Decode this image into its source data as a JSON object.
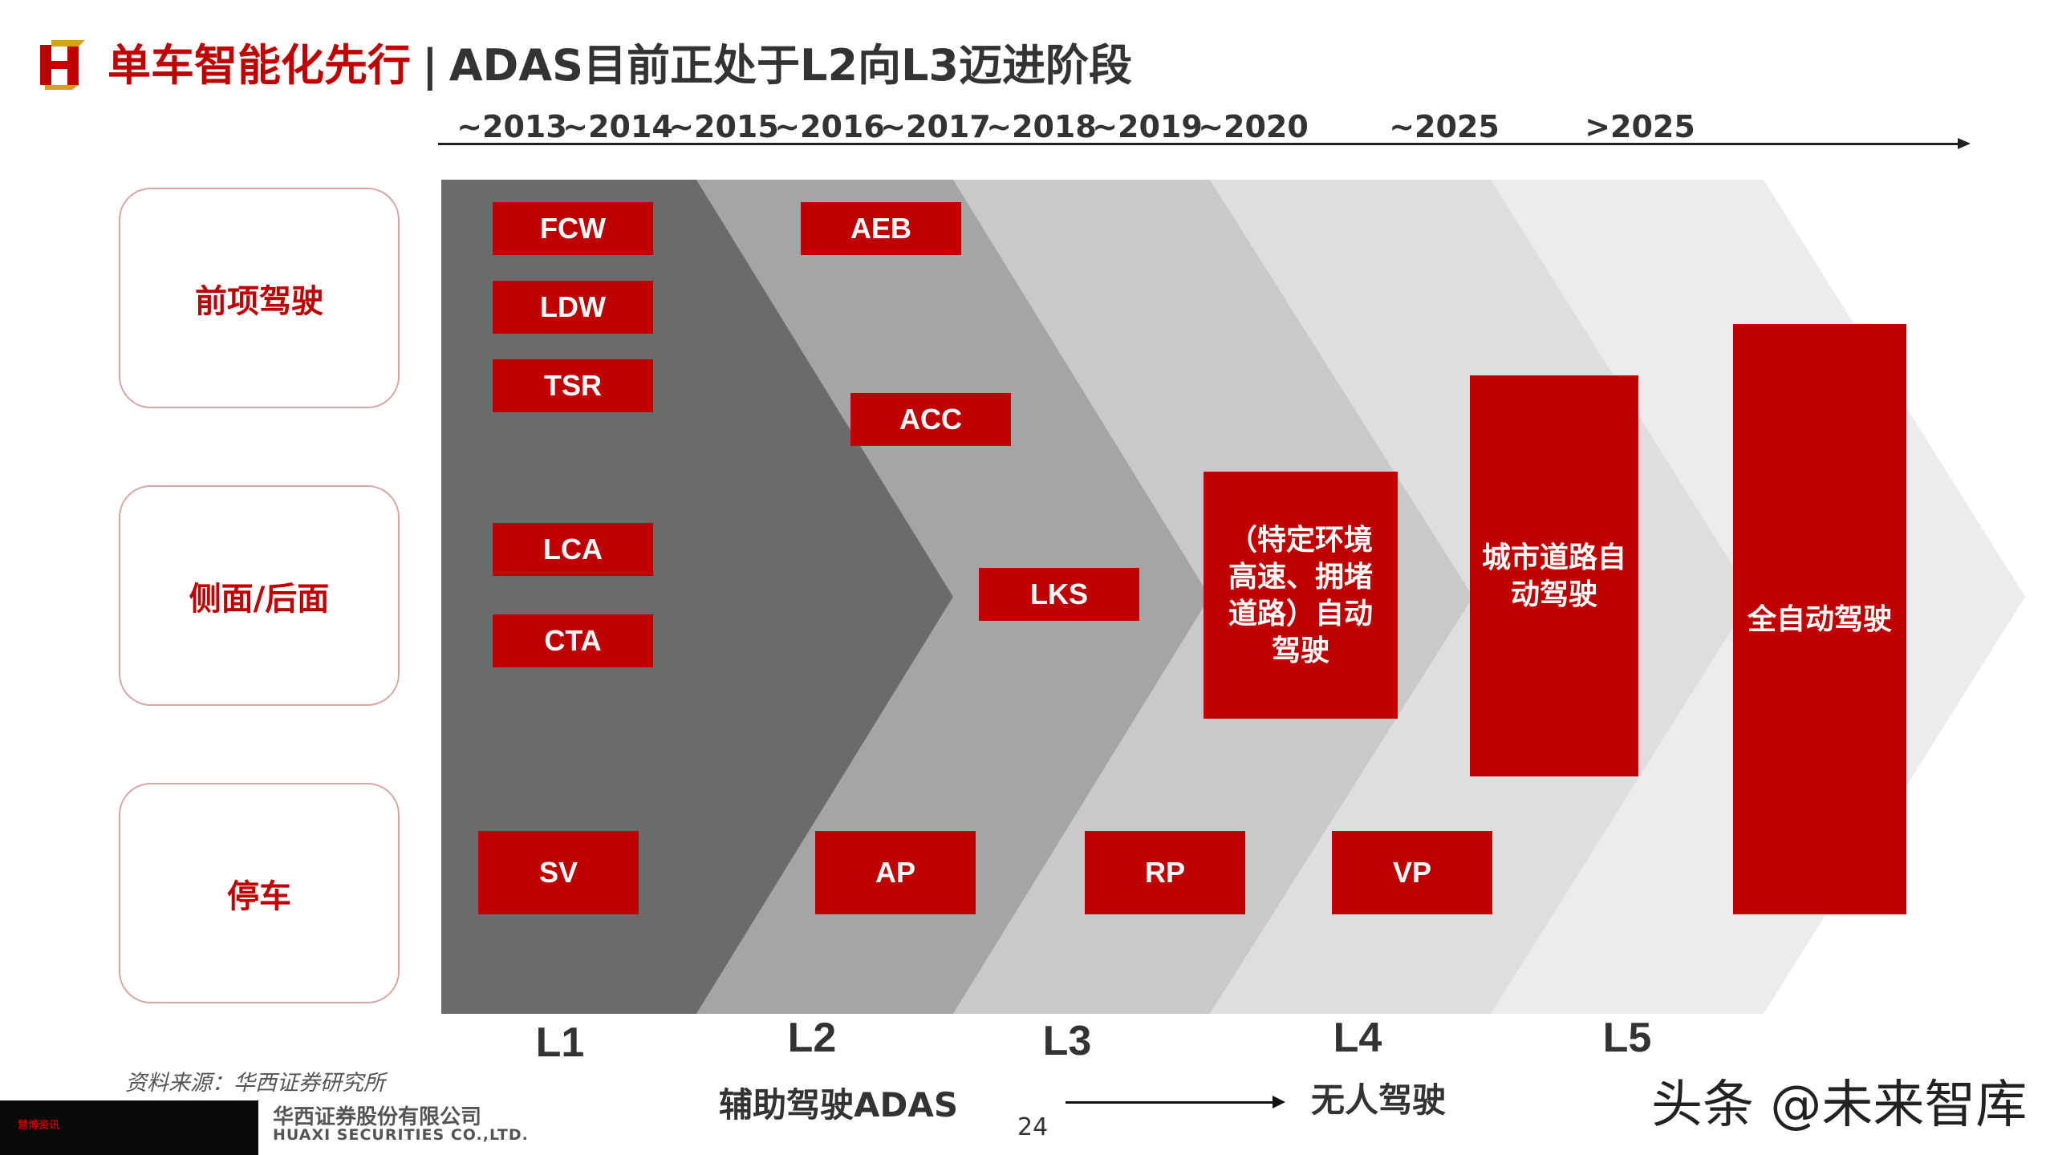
{
  "header": {
    "title_main": "单车智能化先行",
    "separator": "|",
    "title_sub": "ADAS目前正处于L2向L3迈进阶段"
  },
  "timeline": {
    "years": [
      "~2013",
      "~2014",
      "~2015",
      "~2016",
      "~2017",
      "~2018",
      "~2019",
      "~2020",
      "~2025",
      ">2025"
    ]
  },
  "categories": [
    "前项驾驶",
    "侧面/后面",
    "停车"
  ],
  "features": {
    "fcw": "FCW",
    "ldw": "LDW",
    "tsr": "TSR",
    "aeb": "AEB",
    "acc": "ACC",
    "lca": "LCA",
    "cta": "CTA",
    "lks": "LKS",
    "sv": "SV",
    "ap": "AP",
    "rp": "RP",
    "vp": "VP",
    "l3_lines": [
      "（特定环境",
      "高速、拥堵",
      "道路）自动",
      "驾驶"
    ],
    "l4_lines": [
      "城市道路自",
      "动驾驶"
    ],
    "l5": "全自动驾驶"
  },
  "levels": [
    "L1",
    "L2",
    "L3",
    "L4",
    "L5"
  ],
  "colors": {
    "accent_red": "#c00000",
    "chevron_l1": "#6b6b6b",
    "chevron_l2": "#a5a5a5",
    "chevron_l3": "#c9c9c9",
    "chevron_l4": "#dedede",
    "chevron_l5": "#ececec"
  },
  "footer": {
    "source": "资料来源：华西证券研究所",
    "assist_label": "辅助驾驶ADAS",
    "driverless_label": "无人驾驶",
    "page_number": "24",
    "company_cn": "华西证券股份有限公司",
    "company_en": "HUAXI SECURITIES CO.,LTD.",
    "watermark": "头条 @未来智库",
    "corner_text": "慧博资讯"
  }
}
